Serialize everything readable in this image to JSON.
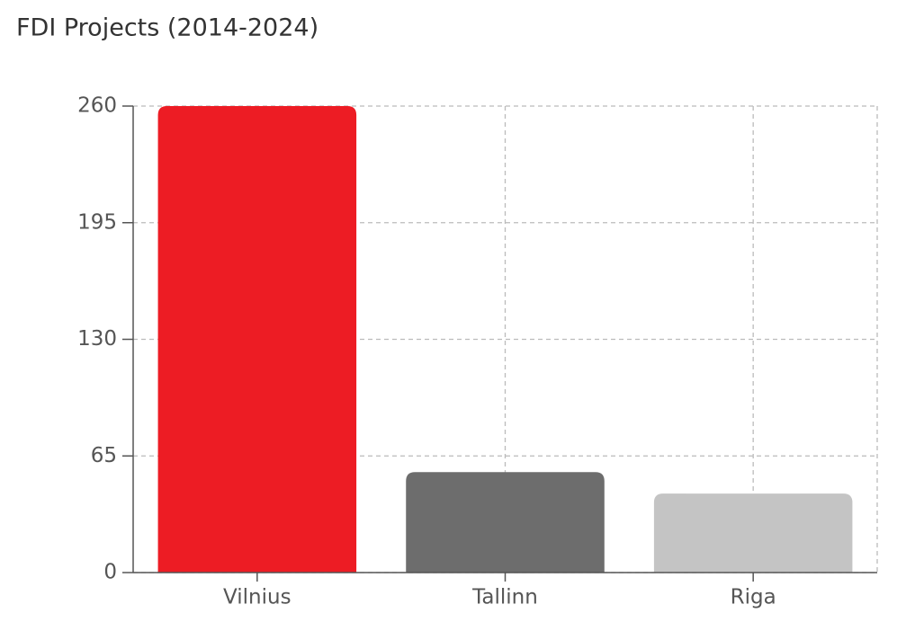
{
  "chart_data": {
    "type": "bar",
    "title": "FDI Projects (2014-2024)",
    "categories": [
      "Vilnius",
      "Tallinn",
      "Riga"
    ],
    "values": [
      260,
      56,
      44
    ],
    "colors": [
      "#ed1c24",
      "#6d6d6d",
      "#c4c4c4"
    ],
    "ylim": [
      0,
      260
    ],
    "yticks": [
      0,
      65,
      130,
      195,
      260
    ],
    "grid": true
  }
}
